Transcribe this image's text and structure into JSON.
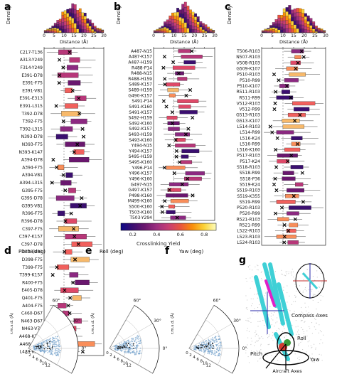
{
  "letters": {
    "a": "a",
    "b": "b",
    "c": "c",
    "d": "d",
    "e": "e",
    "f": "f",
    "g": "g"
  },
  "density_label": "Density",
  "distance_label": "Distance (Å)",
  "crosslink_label": "Crosslinking Yield",
  "crosslink_ticks": [
    "0.2",
    "0.4",
    "0.6",
    "0.8"
  ],
  "axis_ticks": [
    "0",
    "5",
    "10",
    "15",
    "20",
    "25",
    "30"
  ],
  "polar": {
    "d_title": "Pitch (deg)",
    "e_title": "Roll (deg)",
    "f_title": "Yaw (deg)",
    "rmsd_label": "r.m.s.d. (Å)",
    "angle_ticks": [
      "60°",
      "30°",
      "0°",
      "-30°"
    ],
    "radial_ticks": [
      "0",
      "2",
      "4",
      "6",
      "8",
      "10",
      "12"
    ]
  },
  "diagram": {
    "compass": "Compass Axes",
    "roll": "Roll",
    "pitch": "Pitch",
    "yaw": "Yaw",
    "aircraft": "Aircraft Axes"
  },
  "colors": {
    "low": "#3b0f70",
    "mid": "#b73779",
    "high": "#fcfdbf",
    "orange": "#f89540"
  },
  "chart_data": [
    {
      "type": "box",
      "panel": "a",
      "xlabel": "Distance (Å)",
      "xlim": [
        0,
        30
      ],
      "categories": [
        "C217-T136",
        "A313-Y249",
        "F314-Y249",
        "E391-D78",
        "E391-F75",
        "E391-V81",
        "E391-E313",
        "E391-L315",
        "T392-D78",
        "T392-F75",
        "T392-L315",
        "N393-D78",
        "N393-F75",
        "N393-K147",
        "A394-D78",
        "A394-F75",
        "A394-V81",
        "A394-L315",
        "G395-F75",
        "G395-D78",
        "G395-V81",
        "R396-F75",
        "R396-D78",
        "C397-F75",
        "C397-K157",
        "C397-D78",
        "D398-V81",
        "D398-F75",
        "T399-F75",
        "T399-K157",
        "R400-F75",
        "E405-D78",
        "Q401-F75",
        "A404-F75",
        "C460-D67",
        "N463-D67",
        "N463-V70",
        "A468-K157",
        "A468-L171",
        "L479-K157"
      ]
    },
    {
      "type": "box",
      "panel": "b",
      "xlabel": "Distance (Å)",
      "xlim": [
        0,
        30
      ],
      "categories": [
        "A487-N15",
        "A487-K157",
        "A487-H159",
        "R488-P14",
        "R488-N15",
        "R488-H159",
        "S489-K157",
        "S489-H159",
        "G490-K157",
        "S491-P14",
        "S491-K160",
        "S491-K157",
        "S492-H159",
        "S492-K160",
        "S492-K157",
        "S493-H159",
        "S493-K160",
        "Y494-N15",
        "Y494-K157",
        "S495-H159",
        "S495-K160",
        "Y496-P14",
        "Y496-K157",
        "Y496-K160",
        "G497-N15",
        "G497-K157",
        "P498-K160",
        "M499-K160",
        "S500-K160",
        "T503-K160",
        "T503-Y294"
      ]
    },
    {
      "type": "box",
      "panel": "c",
      "xlabel": "Distance (Å)",
      "xlim": [
        0,
        30
      ],
      "categories": [
        "T506-R103",
        "N507-R103",
        "V508-R103",
        "G509-K107",
        "P510-R103",
        "P510-R99",
        "P510-K107",
        "R511-R103",
        "R511-R99",
        "V512-R103",
        "V512-R99",
        "G513-R103",
        "G513-K107",
        "L514-R103",
        "L514-R99",
        "L516-K24",
        "L516-R99",
        "L516-K160",
        "P517-R103",
        "P517-K24",
        "S518-R103",
        "S518-R99",
        "S518-P36",
        "S519-K24",
        "S519-R103",
        "S519-K355",
        "S519-R99",
        "P520-R103",
        "P520-R99",
        "R521-R103",
        "R521-R99",
        "L522-R103",
        "L523-R103",
        "L524-R103"
      ]
    },
    {
      "type": "polar_scatter",
      "panels": [
        "d",
        "e",
        "f"
      ],
      "theta_label": [
        "Pitch (deg)",
        "Roll (deg)",
        "Yaw (deg)"
      ],
      "r_label": "r.m.s.d. (Å)",
      "theta_ticks": [
        "60°",
        "30°",
        "0°",
        "-30°"
      ],
      "r_ticks": [
        0,
        2,
        4,
        6,
        8,
        10,
        12
      ]
    }
  ]
}
